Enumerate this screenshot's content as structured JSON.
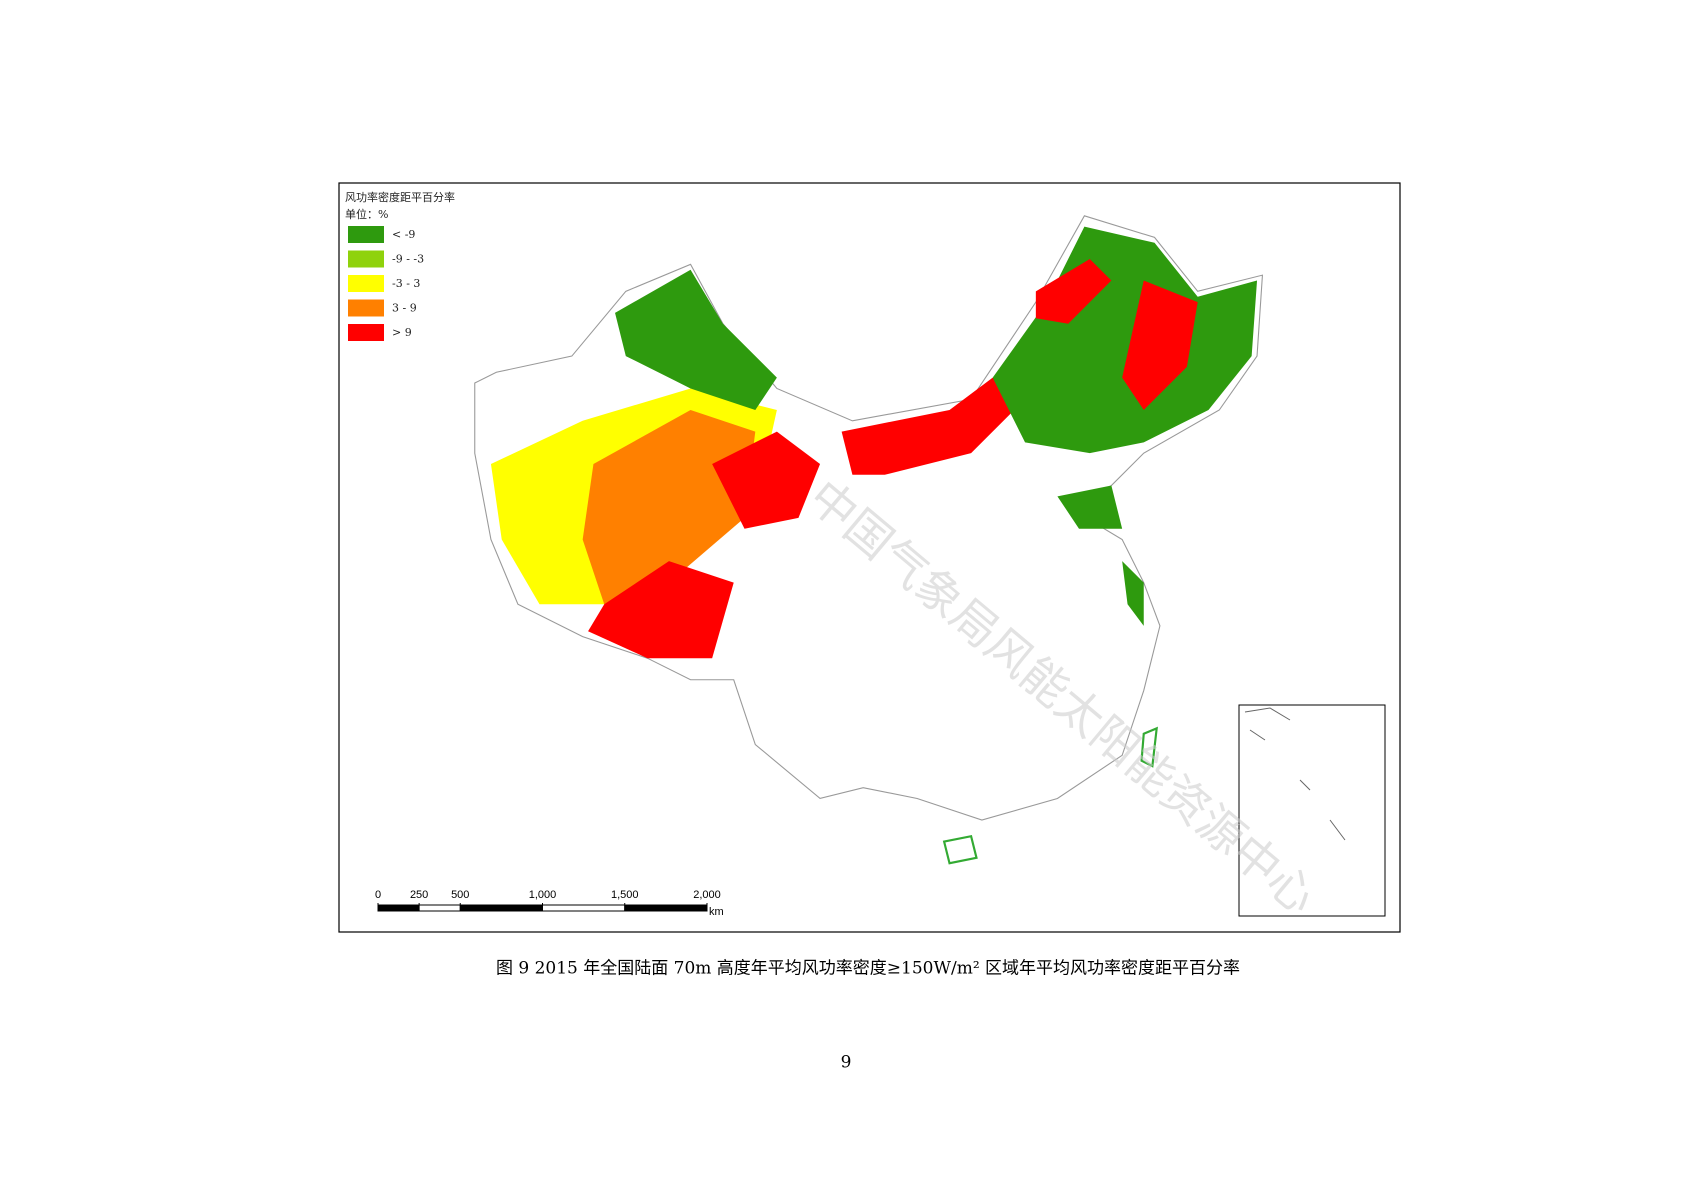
{
  "map": {
    "legend": {
      "title": "风功率密度距平百分率",
      "unit": "单位：%",
      "items": [
        {
          "label": "< -9",
          "color": "#2e9a0e"
        },
        {
          "label": "-9 - -3",
          "color": "#8fd20c"
        },
        {
          "label": "-3 - 3",
          "color": "#ffff00"
        },
        {
          "label": "3 - 9",
          "color": "#ff8000"
        },
        {
          "label": "> 9",
          "color": "#ff0000"
        }
      ]
    },
    "scale_bar": {
      "ticks": [
        0,
        250,
        500,
        {
          "value": 1000,
          "label": "1,000"
        },
        {
          "value": 1500,
          "label": "1,500"
        },
        {
          "value": 2000,
          "label": "2,000"
        }
      ],
      "unit": "km"
    },
    "watermark": "中国气象局风能太阳能资源中心"
  },
  "caption": "图 9   2015 年全国陆面 70m 高度年平均风功率密度≥150W/m² 区域年平均风功率密度距平百分率",
  "page_number": "9"
}
